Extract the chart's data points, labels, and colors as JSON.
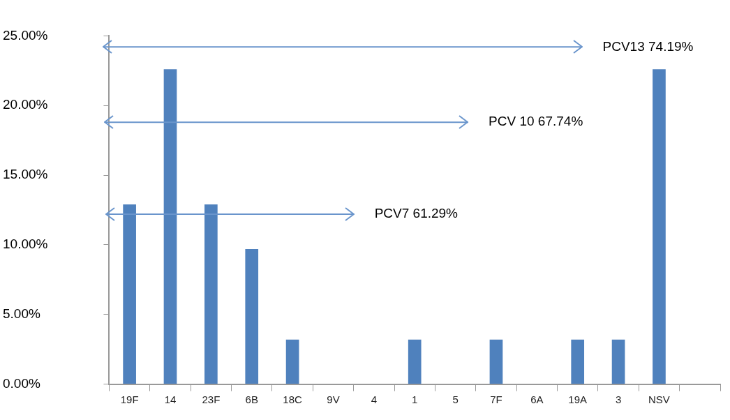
{
  "chart_data": {
    "type": "bar",
    "categories": [
      "19F",
      "14",
      "23F",
      "6B",
      "18C",
      "9V",
      "4",
      "1",
      "5",
      "7F",
      "6A",
      "19A",
      "3",
      "NSV",
      null
    ],
    "values": [
      12.9,
      22.6,
      12.9,
      9.7,
      3.2,
      0,
      0,
      3.2,
      0,
      3.2,
      0,
      3.2,
      3.2,
      22.6,
      null
    ],
    "color": "#4f81bd",
    "ylim": [
      0,
      25
    ],
    "yticks": [
      {
        "value": 0,
        "label": "0.00%"
      },
      {
        "value": 5,
        "label": "5.00%"
      },
      {
        "value": 10,
        "label": "10.00%"
      },
      {
        "value": 15,
        "label": "15.00%"
      },
      {
        "value": 20,
        "label": "20.00%"
      },
      {
        "value": 25,
        "label": "25.00%"
      }
    ],
    "ref_lines": [
      {
        "axis": "y",
        "value": 24.2,
        "label": "PCV13 74.19%",
        "color": "#6a95cc",
        "line_style": "solid"
      },
      {
        "axis": "y",
        "value": 18.8,
        "label": "PCV 10 67.74%",
        "color": "#6a95cc",
        "line_style": "solid"
      },
      {
        "axis": "y",
        "value": 12.2,
        "label": "PCV7 61.29%",
        "color": "#6a95cc",
        "line_style": "solid"
      }
    ],
    "grid": false,
    "legend": false
  }
}
